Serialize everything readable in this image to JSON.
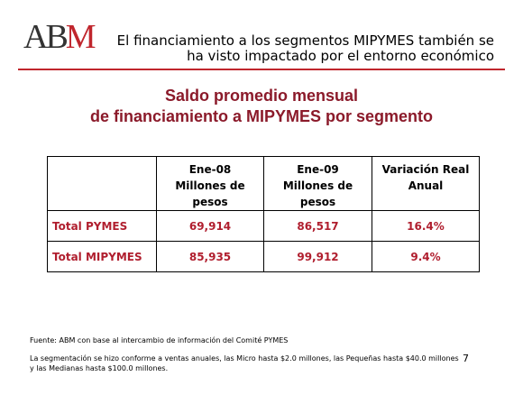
{
  "header": {
    "logo": [
      "AB",
      "M"
    ],
    "title": [
      "El financiamiento a los segmentos MIPYMES también se",
      "ha visto impactado por el entorno económico"
    ]
  },
  "subtitle": [
    "Saldo promedio mensual",
    "de financiamiento a MIPYMES por segmento"
  ],
  "table": {
    "header": [
      [],
      [
        "Ene-08",
        "Millones de pesos"
      ],
      [
        "Ene-09",
        "Millones de pesos"
      ],
      [
        "Variación Real",
        "Anual"
      ]
    ],
    "rows": [
      [
        "Total PYMES",
        "69,914",
        "86,517",
        "16.4%"
      ],
      [
        "Total MIPYMES",
        "85,935",
        "99,912",
        "9.4%"
      ]
    ]
  },
  "footer": {
    "source": "Fuente: ABM con base al intercambio de información del Comité PYMES",
    "note": [
      "La segmentación se hizo conforme a ventas anuales, las Micro hasta $2.0 millones, las Pequeñas hasta $40.0 millones",
      "y las Medianas hasta $100.0 millones."
    ],
    "page": "7"
  }
}
